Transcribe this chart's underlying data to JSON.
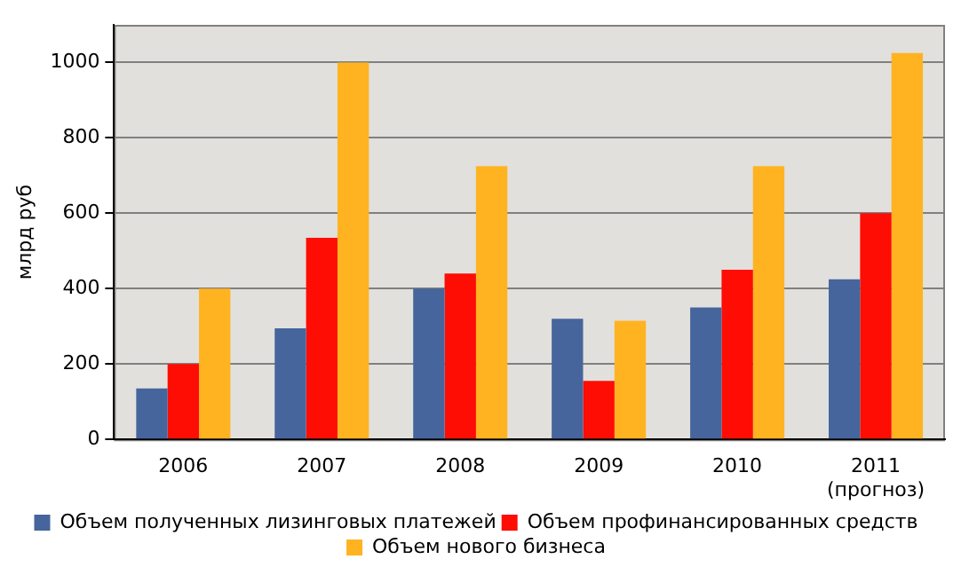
{
  "chart_data": {
    "type": "bar",
    "ylabel": "млрд руб",
    "categories": [
      "2006",
      "2007",
      "2008",
      "2009",
      "2010",
      "2011\n(прогноз)"
    ],
    "series": [
      {
        "name": "Объем полученных лизинговых платежей",
        "color": "#46659c",
        "values": [
          135,
          295,
          400,
          320,
          350,
          425
        ]
      },
      {
        "name": "Объем профинансированных средств",
        "color": "#fe0d04",
        "values": [
          200,
          535,
          440,
          155,
          450,
          600
        ]
      },
      {
        "name": "Объем нового бизнеса",
        "color": "#ffb320",
        "values": [
          400,
          1000,
          725,
          315,
          725,
          1025
        ]
      }
    ],
    "ylim": [
      0,
      1100
    ],
    "yticks": [
      0,
      200,
      400,
      600,
      800,
      1000
    ],
    "grid": "y",
    "legend": "bottom"
  }
}
